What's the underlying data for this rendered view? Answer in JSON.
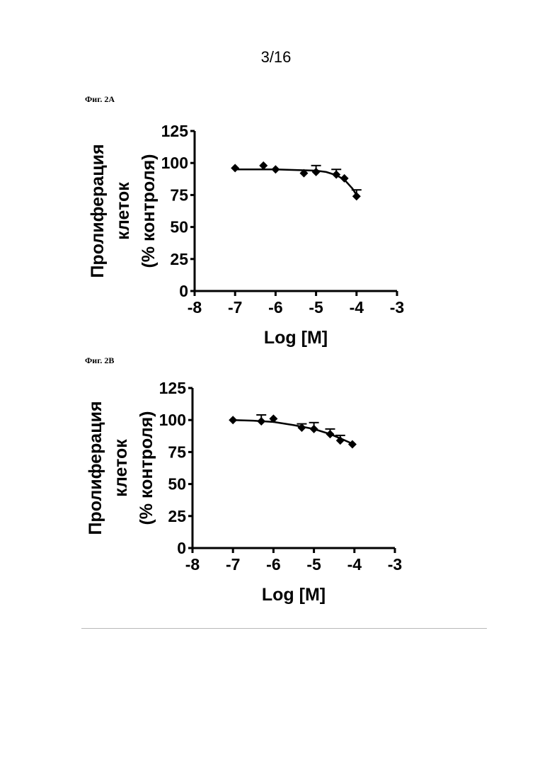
{
  "page": {
    "number": "3/16"
  },
  "figures": [
    {
      "label": "Фиг. 2А"
    },
    {
      "label": "Фиг. 2В"
    }
  ],
  "chart_data": [
    {
      "type": "scatter",
      "title": "",
      "xlabel": "Log [M]",
      "ylabel_lines": [
        "Пролиферация",
        "клеток",
        "(% контроля)"
      ],
      "xlim": [
        -8,
        -3
      ],
      "ylim": [
        0,
        125
      ],
      "xticks": [
        -8,
        -7,
        -6,
        -5,
        -4,
        -3
      ],
      "yticks": [
        0,
        25,
        50,
        75,
        100,
        125
      ],
      "grid": false,
      "marker": "diamond",
      "points": [
        {
          "x": -7.0,
          "y": 96,
          "err": 0
        },
        {
          "x": -6.3,
          "y": 98,
          "err": 0
        },
        {
          "x": -6.0,
          "y": 95,
          "err": 0
        },
        {
          "x": -5.3,
          "y": 92,
          "err": 0
        },
        {
          "x": -5.0,
          "y": 93,
          "err": 5
        },
        {
          "x": -4.5,
          "y": 91,
          "err": 4
        },
        {
          "x": -4.3,
          "y": 88,
          "err": 0
        },
        {
          "x": -4.0,
          "y": 74,
          "err": 5
        }
      ],
      "fit": {
        "x": [
          -7.0,
          -6.5,
          -6.0,
          -5.5,
          -5.0,
          -4.75,
          -4.5,
          -4.3,
          -4.1,
          -4.0
        ],
        "y": [
          95,
          95,
          95,
          94.5,
          94,
          93,
          90.5,
          87,
          80,
          75
        ]
      }
    },
    {
      "type": "scatter",
      "title": "",
      "xlabel": "Log [M]",
      "ylabel_lines": [
        "Пролиферация",
        "клеток",
        "(% контроля)"
      ],
      "xlim": [
        -8,
        -3
      ],
      "ylim": [
        0,
        125
      ],
      "xticks": [
        -8,
        -7,
        -6,
        -5,
        -4,
        -3
      ],
      "yticks": [
        0,
        25,
        50,
        75,
        100,
        125
      ],
      "grid": false,
      "marker": "diamond",
      "points": [
        {
          "x": -7.0,
          "y": 100,
          "err": 0
        },
        {
          "x": -6.3,
          "y": 99,
          "err": 5
        },
        {
          "x": -6.0,
          "y": 101,
          "err": 0
        },
        {
          "x": -5.3,
          "y": 94,
          "err": 3
        },
        {
          "x": -5.0,
          "y": 93,
          "err": 5
        },
        {
          "x": -4.6,
          "y": 89,
          "err": 4
        },
        {
          "x": -4.35,
          "y": 84,
          "err": 4
        },
        {
          "x": -4.05,
          "y": 81,
          "err": 0
        }
      ],
      "fit": {
        "x": [
          -7.0,
          -6.5,
          -6.0,
          -5.5,
          -5.0,
          -4.6,
          -4.3,
          -4.05
        ],
        "y": [
          100,
          99.5,
          98.5,
          96,
          93,
          89,
          85,
          81.5
        ]
      }
    }
  ]
}
